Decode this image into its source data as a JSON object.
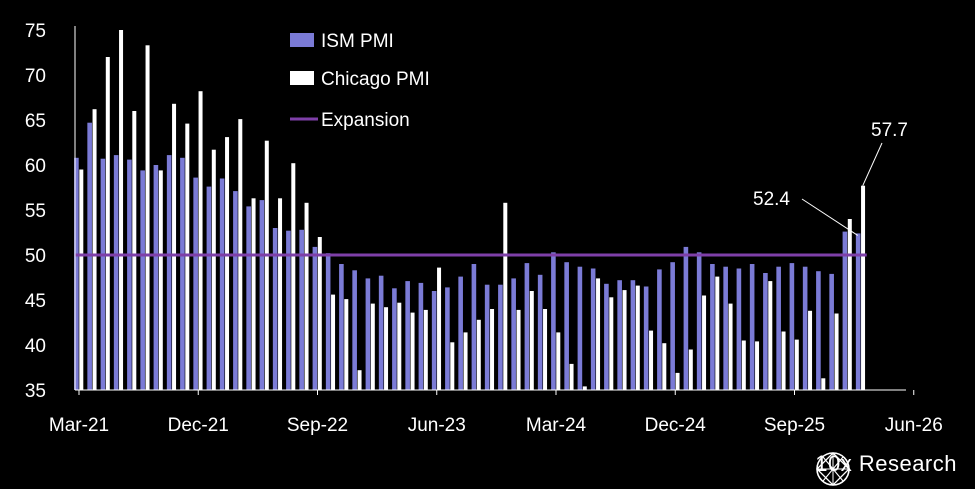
{
  "chart_data": {
    "type": "bar",
    "title": "",
    "xlabel": "",
    "ylabel": "",
    "ylim": [
      35,
      75
    ],
    "yticks": [
      35,
      40,
      45,
      50,
      55,
      60,
      65,
      70,
      75
    ],
    "xtick_labels": [
      "Mar-21",
      "Dec-21",
      "Sep-22",
      "Jun-23",
      "Mar-24",
      "Dec-24",
      "Sep-25",
      "Jun-26"
    ],
    "legend": {
      "position": "top-center",
      "entries": [
        {
          "label": "ISM PMI",
          "kind": "bar"
        },
        {
          "label": "Chicago PMI",
          "kind": "bar"
        },
        {
          "label": "Expansion",
          "kind": "line"
        }
      ]
    },
    "categories": [
      "Mar-21",
      "Apr-21",
      "May-21",
      "Jun-21",
      "Jul-21",
      "Aug-21",
      "Sep-21",
      "Oct-21",
      "Nov-21",
      "Dec-21",
      "Jan-22",
      "Feb-22",
      "Mar-22",
      "Apr-22",
      "May-22",
      "Jun-22",
      "Jul-22",
      "Aug-22",
      "Sep-22",
      "Oct-22",
      "Nov-22",
      "Dec-22",
      "Jan-23",
      "Feb-23",
      "Mar-23",
      "Apr-23",
      "May-23",
      "Jun-23",
      "Jul-23",
      "Aug-23",
      "Sep-23",
      "Oct-23",
      "Nov-23",
      "Dec-23",
      "Jan-24",
      "Feb-24",
      "Mar-24",
      "Apr-24",
      "May-24",
      "Jun-24",
      "Jul-24",
      "Aug-24",
      "Sep-24",
      "Oct-24",
      "Nov-24",
      "Dec-24",
      "Jan-25",
      "Feb-25",
      "Mar-25",
      "Apr-25",
      "May-25",
      "Jun-25",
      "Jul-25",
      "Aug-25",
      "Sep-25",
      "Oct-25",
      "Nov-25",
      "Dec-25",
      "Jan-26",
      "Feb-26"
    ],
    "series": [
      {
        "name": "ISM PMI",
        "type": "bar",
        "values": [
          60.8,
          64.7,
          60.7,
          61.1,
          60.6,
          59.4,
          60.0,
          61.1,
          60.8,
          58.6,
          57.6,
          58.5,
          57.1,
          55.4,
          56.1,
          53.0,
          52.7,
          52.8,
          50.9,
          50.2,
          49.0,
          48.3,
          47.4,
          47.7,
          46.3,
          47.1,
          46.9,
          46.0,
          46.4,
          47.6,
          49.0,
          46.7,
          46.7,
          47.4,
          49.1,
          47.8,
          50.3,
          49.2,
          48.7,
          48.5,
          46.8,
          47.2,
          47.2,
          46.5,
          48.4,
          49.2,
          50.9,
          50.3,
          49.0,
          48.7,
          48.5,
          49.0,
          48.0,
          48.7,
          49.1,
          48.7,
          48.2,
          47.9,
          52.6,
          52.4
        ]
      },
      {
        "name": "Chicago PMI",
        "type": "bar",
        "values": [
          59.5,
          66.2,
          72.0,
          75.0,
          66.0,
          73.3,
          59.4,
          66.8,
          64.6,
          68.2,
          61.7,
          63.1,
          65.1,
          56.3,
          62.7,
          56.3,
          60.2,
          55.8,
          52.0,
          45.6,
          45.1,
          37.2,
          44.6,
          44.2,
          44.7,
          43.6,
          43.9,
          48.6,
          40.3,
          41.4,
          42.8,
          44.0,
          55.8,
          43.9,
          46.0,
          44.0,
          41.4,
          37.9,
          35.4,
          47.4,
          45.3,
          46.1,
          46.6,
          41.6,
          40.2,
          36.9,
          39.5,
          45.5,
          47.6,
          44.6,
          40.5,
          40.4,
          47.1,
          41.5,
          40.6,
          43.8,
          36.3,
          43.5,
          54.0,
          57.7
        ]
      },
      {
        "name": "Expansion",
        "type": "line",
        "value": 50
      }
    ],
    "annotations": [
      {
        "text": "52.4",
        "category": "Feb-26",
        "value": 52.4
      },
      {
        "text": "57.7",
        "category": "Feb-26",
        "value": 57.7
      }
    ],
    "colors": {
      "background": "#000000",
      "ism": "#7b7bd6",
      "chicago": "#ffffff",
      "expansion": "#7e3fa8",
      "axis": "#ffffff",
      "text": "#ffffff"
    }
  },
  "brand": {
    "text": "10x Research",
    "icon": "globe-logo-icon"
  }
}
